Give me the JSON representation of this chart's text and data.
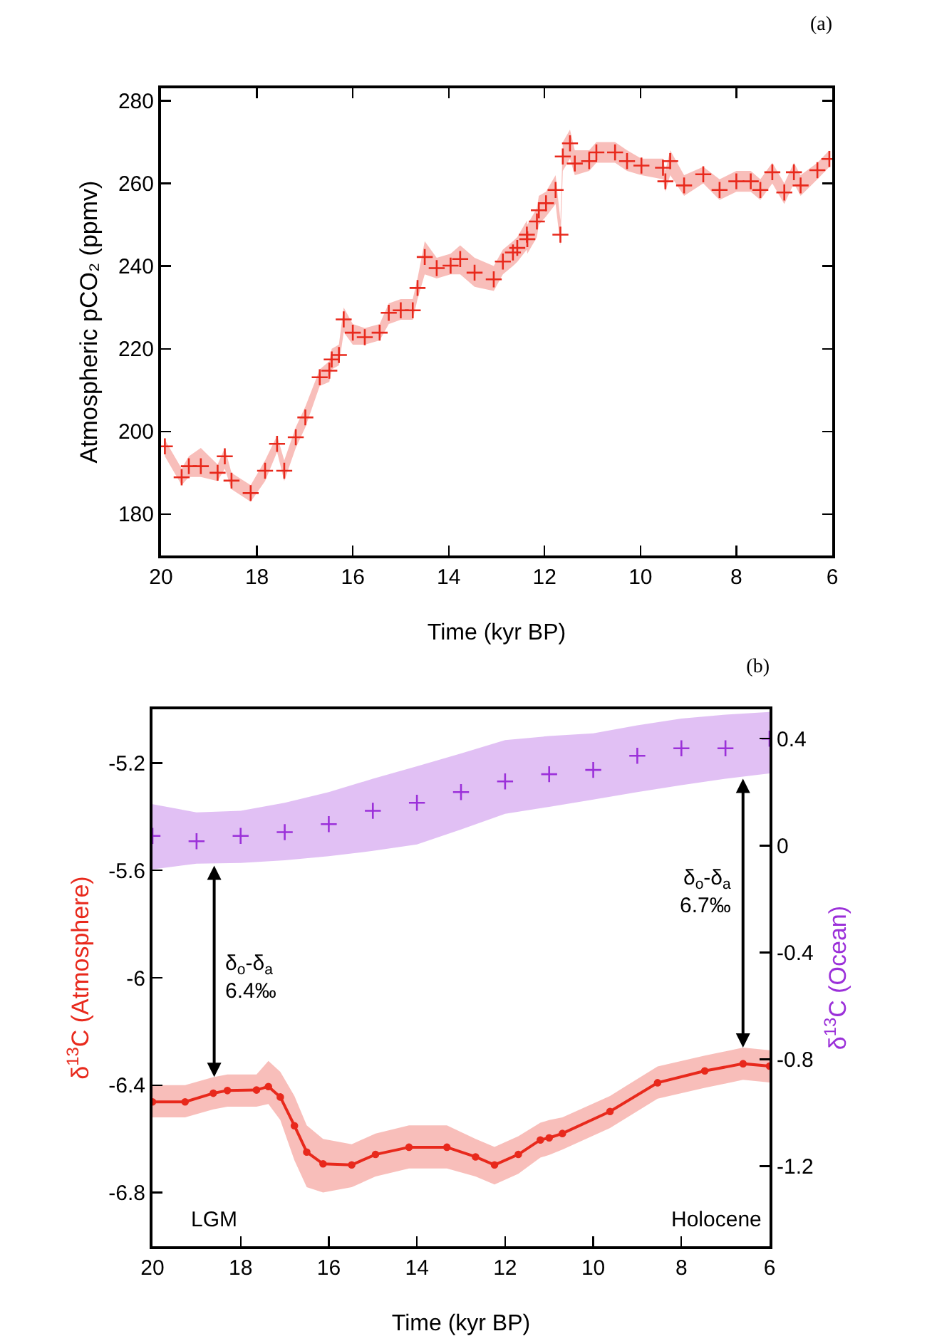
{
  "chart_data": [
    {
      "type": "scatter",
      "title": "(a)",
      "xlabel": "Time (kyr BP)",
      "ylabel": "Atmospheric pCO₂ (ppmv)",
      "xlim": [
        20,
        6
      ],
      "xticks": [
        20,
        18,
        16,
        14,
        12,
        10,
        8,
        6
      ],
      "ylim": [
        170,
        283
      ],
      "yticks": [
        180,
        200,
        220,
        240,
        260,
        280
      ],
      "grid": false,
      "marker": "cross",
      "series": [
        {
          "color": "#e8291c",
          "x": [
            19.92,
            19.57,
            19.42,
            19.17,
            18.82,
            18.67,
            18.53,
            18.13,
            17.83,
            17.58,
            17.43,
            17.19,
            16.99,
            16.69,
            16.49,
            16.44,
            16.29,
            16.19,
            16.0,
            15.75,
            15.44,
            15.25,
            15.0,
            14.75,
            14.65,
            14.5,
            14.25,
            13.96,
            13.76,
            13.46,
            13.06,
            12.87,
            12.66,
            12.57,
            12.37,
            12.36,
            12.16,
            12.12,
            11.97,
            11.77,
            11.67,
            11.62,
            11.47,
            11.37,
            11.07,
            10.92,
            10.53,
            10.28,
            9.98,
            9.53,
            9.48,
            9.38,
            9.09,
            8.69,
            8.35,
            8.0,
            7.7,
            7.5,
            7.25,
            7.0,
            6.8,
            6.66,
            6.31,
            6.06
          ],
          "values": [
            196.4,
            188.9,
            191.6,
            191.6,
            190,
            194,
            188.1,
            185.1,
            190.5,
            197,
            190.5,
            198.6,
            203.4,
            213.1,
            214.7,
            217.4,
            218.5,
            227.1,
            223.9,
            222.8,
            223.9,
            228.7,
            229.3,
            229.3,
            234.7,
            242.2,
            239.5,
            240.1,
            241.7,
            238.4,
            236.8,
            241.1,
            243.3,
            244.4,
            247.6,
            246.5,
            250.8,
            253.5,
            255.2,
            258.4,
            247.6,
            266.5,
            269.7,
            264.8,
            265.4,
            267.5,
            267.5,
            265.4,
            264.3,
            263.8,
            260.5,
            265.4,
            259.5,
            262.2,
            258.4,
            260.5,
            260.5,
            258.4,
            262.7,
            257.8,
            262.7,
            259.5,
            263.2,
            265.9
          ],
          "lower": [
            194,
            187,
            189,
            189,
            188,
            191,
            186,
            183,
            188,
            195,
            188,
            196,
            201,
            211,
            212,
            215,
            216,
            224,
            221,
            221,
            222,
            226,
            227,
            227,
            232,
            238,
            237,
            238,
            238,
            235,
            234,
            238,
            240,
            241,
            244,
            243,
            247,
            250,
            252,
            255,
            245,
            263,
            266,
            262,
            263,
            265,
            265,
            263,
            262,
            261,
            258,
            262,
            257,
            260,
            256,
            258,
            258,
            256,
            260,
            255,
            260,
            257,
            261,
            264
          ],
          "upper": [
            198,
            191,
            194,
            196,
            192,
            196,
            190,
            187,
            193,
            199,
            193,
            201,
            206,
            215,
            217,
            220,
            221,
            230,
            226,
            225,
            226,
            231,
            232,
            232,
            237,
            246,
            242,
            243,
            245,
            242,
            240,
            244,
            246,
            247,
            251,
            250,
            254,
            257,
            258,
            262,
            251,
            270,
            273,
            268,
            268,
            270,
            270,
            268,
            266,
            266,
            263,
            268,
            262,
            264,
            261,
            263,
            263,
            261,
            265,
            260,
            265,
            262,
            265,
            268
          ]
        }
      ]
    },
    {
      "type": "line",
      "title": "(b)",
      "xlabel": "Time (kyr BP)",
      "ylabel": "δ$^{13}$C (Atmosphere)",
      "y2label": "δ$^{13}$C (Ocean)",
      "xlim": [
        20,
        6
      ],
      "xticks": [
        20,
        18,
        16,
        14,
        12,
        10,
        8,
        6
      ],
      "ylim": [
        -7.0,
        -5.0
      ],
      "yticks": [
        -5.2,
        -5.6,
        -6,
        -6.4,
        -6.8
      ],
      "y2lim": [
        -1.5,
        0.51
      ],
      "y2ticks": [
        0.4,
        0,
        -0.4,
        -0.8,
        -1.2
      ],
      "grid": false,
      "series": [
        {
          "type": "line",
          "marker": "circle",
          "color": "#e8291c",
          "x": [
            20,
            19.26,
            18.62,
            18.3,
            17.64,
            17.37,
            17.1,
            16.78,
            16.5,
            16.13,
            15.48,
            14.94,
            14.18,
            13.32,
            12.67,
            12.24,
            11.7,
            11.2,
            11.0,
            10.7,
            9.62,
            8.54,
            7.47,
            6.6,
            6.0
          ],
          "values": [
            -6.462,
            -6.462,
            -6.43,
            -6.42,
            -6.418,
            -6.405,
            -6.444,
            -6.551,
            -6.649,
            -6.693,
            -6.697,
            -6.658,
            -6.631,
            -6.631,
            -6.667,
            -6.697,
            -6.658,
            -6.604,
            -6.596,
            -6.58,
            -6.498,
            -6.391,
            -6.347,
            -6.32,
            -6.329
          ],
          "lower": [
            -6.52,
            -6.52,
            -6.49,
            -6.48,
            -6.48,
            -6.47,
            -6.53,
            -6.68,
            -6.78,
            -6.8,
            -6.78,
            -6.74,
            -6.71,
            -6.71,
            -6.74,
            -6.77,
            -6.73,
            -6.67,
            -6.66,
            -6.64,
            -6.56,
            -6.45,
            -6.41,
            -6.38,
            -6.39
          ],
          "upper": [
            -6.4,
            -6.4,
            -6.37,
            -6.36,
            -6.36,
            -6.31,
            -6.35,
            -6.44,
            -6.55,
            -6.6,
            -6.62,
            -6.58,
            -6.55,
            -6.55,
            -6.6,
            -6.63,
            -6.59,
            -6.54,
            -6.53,
            -6.52,
            -6.44,
            -6.33,
            -6.29,
            -6.26,
            -6.27
          ]
        },
        {
          "type": "scatter",
          "marker": "cross",
          "axis": "y2",
          "color": "#9b30d9",
          "x": [
            20,
            19,
            18,
            17,
            16,
            15,
            14,
            13,
            12,
            11,
            10,
            9,
            8,
            7,
            6
          ],
          "values": [
            0.036,
            0.016,
            0.036,
            0.05,
            0.08,
            0.13,
            0.16,
            0.2,
            0.24,
            0.267,
            0.283,
            0.336,
            0.364,
            0.364,
            0.4
          ],
          "lower": [
            -0.089,
            -0.068,
            -0.065,
            -0.055,
            -0.04,
            -0.02,
            0.004,
            0.06,
            0.119,
            0.145,
            0.172,
            0.2,
            0.226,
            0.25,
            0.27
          ],
          "upper": [
            0.155,
            0.124,
            0.13,
            0.16,
            0.2,
            0.25,
            0.297,
            0.345,
            0.395,
            0.41,
            0.42,
            0.45,
            0.475,
            0.49,
            0.5
          ]
        }
      ],
      "annotations": [
        "δ$_{o}$-δ$_{a}$\n6.4‰",
        "δ$_{o}$-δ$_{a}$\n6.7‰",
        "LGM",
        "Holocene"
      ]
    }
  ]
}
